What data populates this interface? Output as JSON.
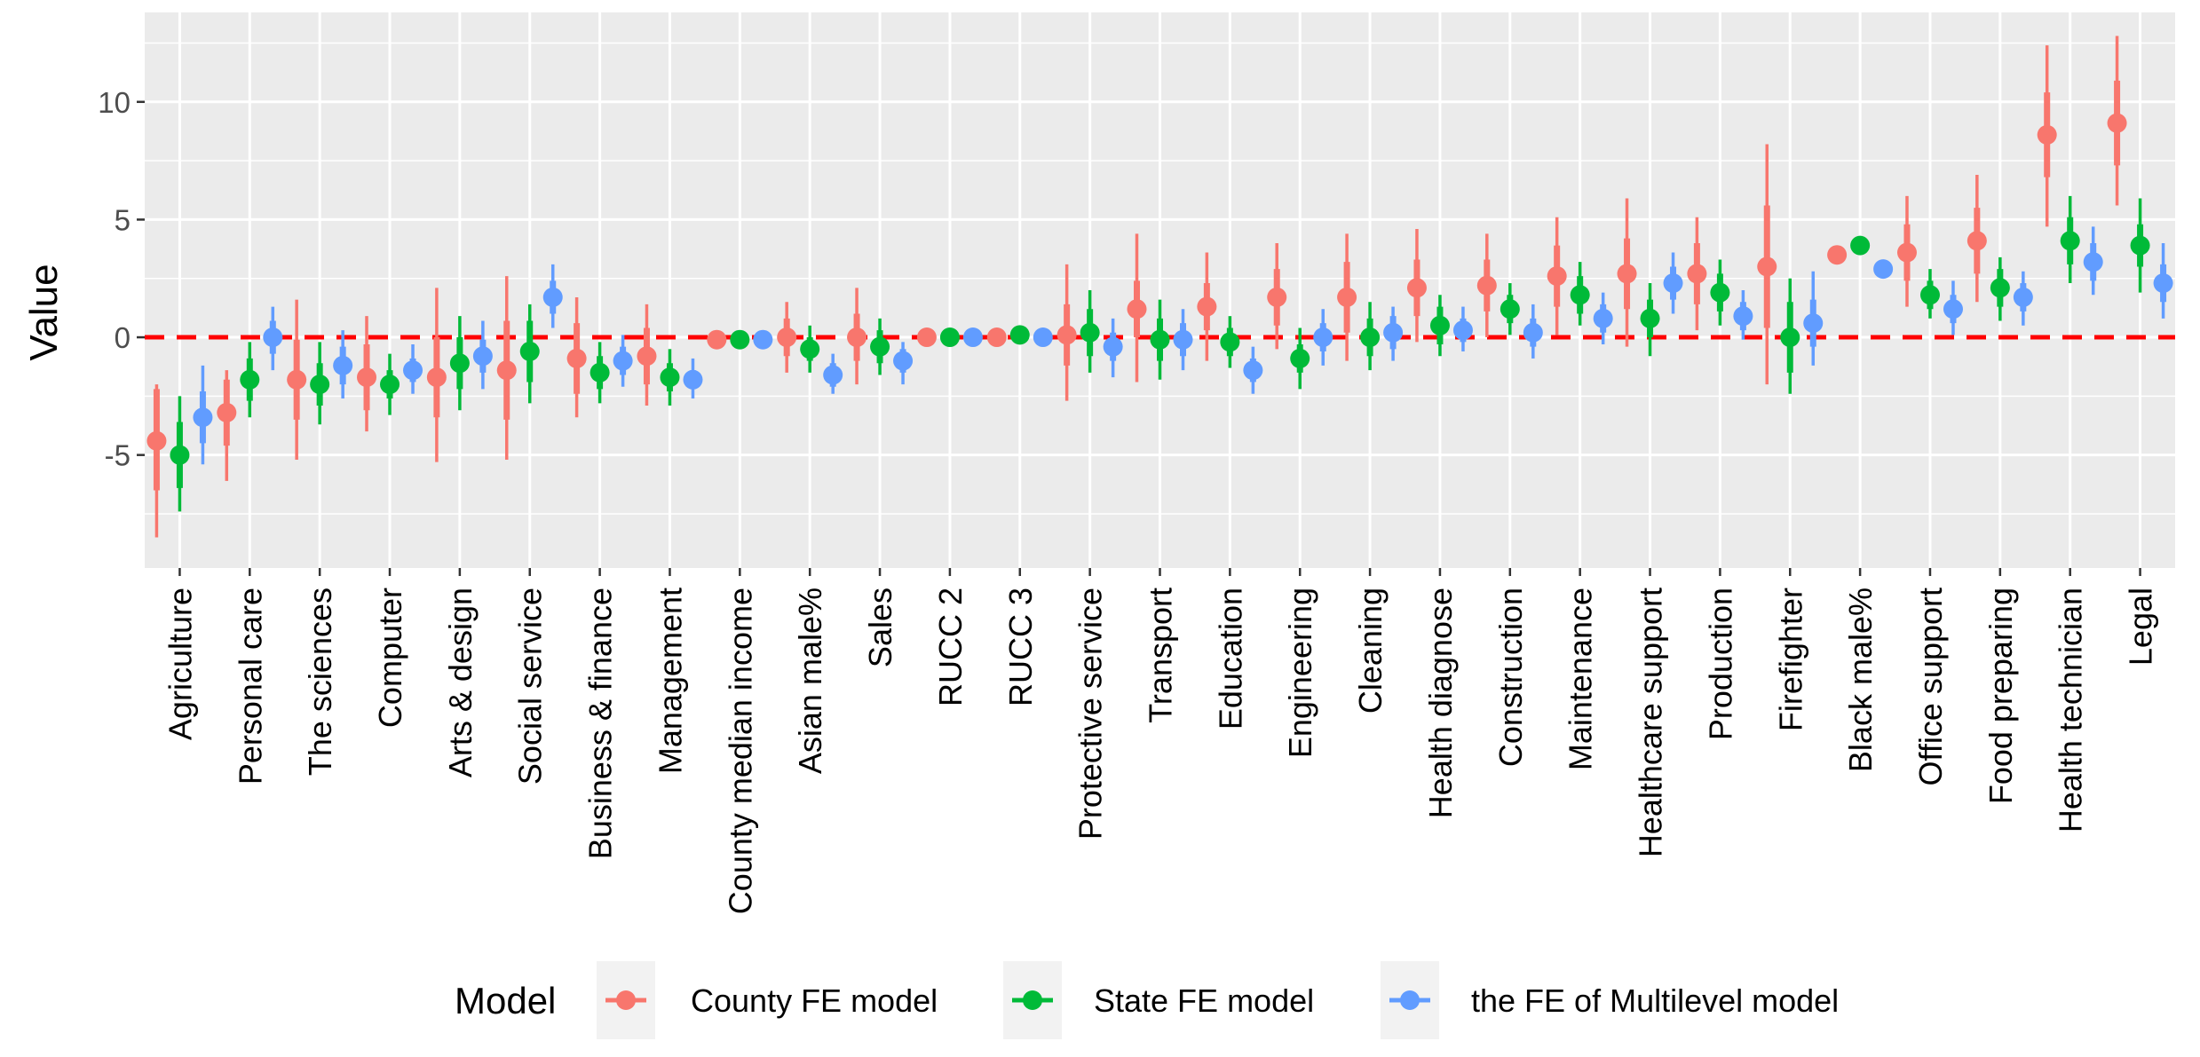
{
  "chart_data": {
    "type": "scatter",
    "subtype": "coefficient-plot-with-intervals",
    "title": "",
    "xlabel": "",
    "ylabel": "Value",
    "ylim": [
      -9.8,
      13.8
    ],
    "yticks": [
      -5,
      0,
      5,
      10
    ],
    "grid": true,
    "reference_line": {
      "y": 0,
      "color": "#FF0000",
      "style": "dashed"
    },
    "legend": {
      "title": "Model",
      "position": "bottom"
    },
    "categories": [
      "Agriculture",
      "Personal care",
      "The sciences",
      "Computer",
      "Arts & design",
      "Social service",
      "Business & finance",
      "Management",
      "County median income",
      "Asian male%",
      "Sales",
      "RUCC 2",
      "RUCC 3",
      "Protective service",
      "Transport",
      "Education",
      "Engineering",
      "Cleaning",
      "Health diagnose",
      "Construction",
      "Maintenance",
      "Healthcare support",
      "Production",
      "Firefighter",
      "Black male%",
      "Office support",
      "Food preparing",
      "Health technician",
      "Legal"
    ],
    "series": [
      {
        "name": "County FE model",
        "color": "#F8766D",
        "values": [
          -4.4,
          -3.2,
          -1.8,
          -1.7,
          -1.7,
          -1.4,
          -0.9,
          -0.8,
          -0.1,
          0.0,
          0.0,
          0.0,
          0.0,
          0.1,
          1.2,
          1.3,
          1.7,
          1.7,
          2.1,
          2.2,
          2.6,
          2.7,
          2.7,
          3.0,
          3.5,
          3.6,
          4.1,
          8.6,
          9.1
        ],
        "inner": [
          [
            -6.5,
            -2.2
          ],
          [
            -4.6,
            -1.8
          ],
          [
            -3.5,
            -0.1
          ],
          [
            -3.1,
            -0.3
          ],
          [
            -3.4,
            0.0
          ],
          [
            -3.5,
            0.7
          ],
          [
            -2.4,
            0.6
          ],
          [
            -2.0,
            0.4
          ],
          [
            -0.2,
            0.0
          ],
          [
            -0.8,
            0.8
          ],
          [
            -1.0,
            1.0
          ],
          [
            -0.05,
            0.05
          ],
          [
            -0.05,
            0.05
          ],
          [
            -1.2,
            1.4
          ],
          [
            0.0,
            2.4
          ],
          [
            0.3,
            2.3
          ],
          [
            0.5,
            2.9
          ],
          [
            0.2,
            3.2
          ],
          [
            0.9,
            3.3
          ],
          [
            1.1,
            3.3
          ],
          [
            1.3,
            3.9
          ],
          [
            1.2,
            4.2
          ],
          [
            1.4,
            4.0
          ],
          [
            0.4,
            5.6
          ],
          [
            3.4,
            3.6
          ],
          [
            2.4,
            4.8
          ],
          [
            2.7,
            5.5
          ],
          [
            6.8,
            10.4
          ],
          [
            7.3,
            10.9
          ]
        ],
        "outer": [
          [
            -8.5,
            -2.0
          ],
          [
            -6.1,
            -1.4
          ],
          [
            -5.2,
            1.6
          ],
          [
            -4.0,
            0.9
          ],
          [
            -5.3,
            2.1
          ],
          [
            -5.2,
            2.6
          ],
          [
            -3.4,
            1.7
          ],
          [
            -2.9,
            1.4
          ],
          [
            -0.2,
            0.0
          ],
          [
            -1.5,
            1.5
          ],
          [
            -2.0,
            2.1
          ],
          [
            -0.05,
            0.05
          ],
          [
            -0.05,
            0.05
          ],
          [
            -2.7,
            3.1
          ],
          [
            -1.9,
            4.4
          ],
          [
            -1.0,
            3.6
          ],
          [
            -0.5,
            4.0
          ],
          [
            -1.0,
            4.4
          ],
          [
            -0.2,
            4.6
          ],
          [
            0.0,
            4.4
          ],
          [
            0.1,
            5.1
          ],
          [
            -0.4,
            5.9
          ],
          [
            0.3,
            5.1
          ],
          [
            -2.0,
            8.2
          ],
          [
            3.3,
            3.7
          ],
          [
            1.3,
            6.0
          ],
          [
            1.5,
            6.9
          ],
          [
            4.7,
            12.4
          ],
          [
            5.6,
            12.8
          ]
        ]
      },
      {
        "name": "State FE model",
        "color": "#00BA38",
        "values": [
          -5.0,
          -1.8,
          -2.0,
          -2.0,
          -1.1,
          -0.6,
          -1.5,
          -1.7,
          -0.1,
          -0.5,
          -0.4,
          0.0,
          0.1,
          0.2,
          -0.1,
          -0.2,
          -0.9,
          0.0,
          0.5,
          1.2,
          1.8,
          0.8,
          1.9,
          0.0,
          3.9,
          1.8,
          2.1,
          4.1,
          3.9
        ],
        "inner": [
          [
            -6.4,
            -3.6
          ],
          [
            -2.7,
            -0.9
          ],
          [
            -2.9,
            -1.1
          ],
          [
            -2.6,
            -1.4
          ],
          [
            -2.2,
            0.0
          ],
          [
            -1.9,
            0.7
          ],
          [
            -2.2,
            -0.8
          ],
          [
            -2.3,
            -1.1
          ],
          [
            -0.2,
            0.0
          ],
          [
            -1.0,
            0.0
          ],
          [
            -1.1,
            0.3
          ],
          [
            -0.05,
            0.05
          ],
          [
            0.05,
            0.15
          ],
          [
            -0.8,
            1.2
          ],
          [
            -1.0,
            0.8
          ],
          [
            -0.8,
            0.4
          ],
          [
            -1.5,
            -0.3
          ],
          [
            -0.8,
            0.8
          ],
          [
            -0.3,
            1.3
          ],
          [
            0.6,
            1.8
          ],
          [
            1.0,
            2.6
          ],
          [
            0.0,
            1.6
          ],
          [
            1.1,
            2.7
          ],
          [
            -1.5,
            1.5
          ],
          [
            3.8,
            4.0
          ],
          [
            1.2,
            2.4
          ],
          [
            1.3,
            2.9
          ],
          [
            3.1,
            5.1
          ],
          [
            3.0,
            4.8
          ]
        ],
        "outer": [
          [
            -7.4,
            -2.5
          ],
          [
            -3.4,
            -0.2
          ],
          [
            -3.7,
            -0.2
          ],
          [
            -3.3,
            -0.7
          ],
          [
            -3.1,
            0.9
          ],
          [
            -2.8,
            1.4
          ],
          [
            -2.8,
            -0.2
          ],
          [
            -2.9,
            -0.5
          ],
          [
            -0.2,
            0.0
          ],
          [
            -1.5,
            0.5
          ],
          [
            -1.6,
            0.8
          ],
          [
            -0.05,
            0.05
          ],
          [
            0.05,
            0.15
          ],
          [
            -1.5,
            2.0
          ],
          [
            -1.8,
            1.6
          ],
          [
            -1.3,
            0.9
          ],
          [
            -2.2,
            0.4
          ],
          [
            -1.4,
            1.5
          ],
          [
            -0.8,
            1.8
          ],
          [
            0.1,
            2.3
          ],
          [
            0.5,
            3.2
          ],
          [
            -0.8,
            2.3
          ],
          [
            0.5,
            3.3
          ],
          [
            -2.4,
            2.5
          ],
          [
            3.7,
            4.1
          ],
          [
            0.8,
            2.9
          ],
          [
            0.7,
            3.4
          ],
          [
            2.3,
            6.0
          ],
          [
            1.9,
            5.9
          ]
        ]
      },
      {
        "name": "the FE of Multilevel model",
        "color": "#619CFF",
        "values": [
          -3.4,
          0.0,
          -1.2,
          -1.4,
          -0.8,
          1.7,
          -1.0,
          -1.8,
          -0.1,
          -1.6,
          -1.0,
          0.0,
          0.0,
          -0.4,
          -0.1,
          -1.4,
          0.0,
          0.2,
          0.3,
          0.2,
          0.8,
          2.3,
          0.9,
          0.6,
          2.9,
          1.2,
          1.7,
          3.2,
          2.3
        ],
        "inner": [
          [
            -4.5,
            -2.3
          ],
          [
            -0.7,
            0.7
          ],
          [
            -2.0,
            -0.4
          ],
          [
            -1.9,
            -0.9
          ],
          [
            -1.5,
            -0.1
          ],
          [
            1.0,
            2.4
          ],
          [
            -1.6,
            -0.4
          ],
          [
            -2.2,
            -1.4
          ],
          [
            -0.15,
            -0.05
          ],
          [
            -2.1,
            -1.1
          ],
          [
            -1.5,
            -0.5
          ],
          [
            -0.05,
            0.05
          ],
          [
            -0.05,
            0.05
          ],
          [
            -1.0,
            0.2
          ],
          [
            -0.8,
            0.6
          ],
          [
            -1.9,
            -0.9
          ],
          [
            -0.6,
            0.6
          ],
          [
            -0.5,
            0.9
          ],
          [
            -0.2,
            0.8
          ],
          [
            -0.4,
            0.8
          ],
          [
            0.2,
            1.4
          ],
          [
            1.6,
            3.0
          ],
          [
            0.3,
            1.5
          ],
          [
            -0.4,
            1.6
          ],
          [
            2.8,
            3.0
          ],
          [
            0.6,
            1.8
          ],
          [
            1.1,
            2.3
          ],
          [
            2.4,
            4.0
          ],
          [
            1.5,
            3.1
          ]
        ],
        "outer": [
          [
            -5.4,
            -1.2
          ],
          [
            -1.4,
            1.3
          ],
          [
            -2.6,
            0.3
          ],
          [
            -2.4,
            -0.3
          ],
          [
            -2.2,
            0.7
          ],
          [
            0.4,
            3.1
          ],
          [
            -2.1,
            0.1
          ],
          [
            -2.6,
            -0.9
          ],
          [
            -0.15,
            -0.05
          ],
          [
            -2.4,
            -0.7
          ],
          [
            -2.0,
            -0.2
          ],
          [
            -0.05,
            0.05
          ],
          [
            -0.05,
            0.05
          ],
          [
            -1.7,
            0.8
          ],
          [
            -1.4,
            1.2
          ],
          [
            -2.4,
            -0.4
          ],
          [
            -1.2,
            1.2
          ],
          [
            -1.0,
            1.3
          ],
          [
            -0.6,
            1.3
          ],
          [
            -0.9,
            1.4
          ],
          [
            -0.3,
            1.9
          ],
          [
            1.0,
            3.6
          ],
          [
            -0.1,
            2.0
          ],
          [
            -1.2,
            2.8
          ],
          [
            2.7,
            3.1
          ],
          [
            0.1,
            2.4
          ],
          [
            0.5,
            2.8
          ],
          [
            1.8,
            4.7
          ],
          [
            0.8,
            4.0
          ]
        ]
      }
    ]
  }
}
